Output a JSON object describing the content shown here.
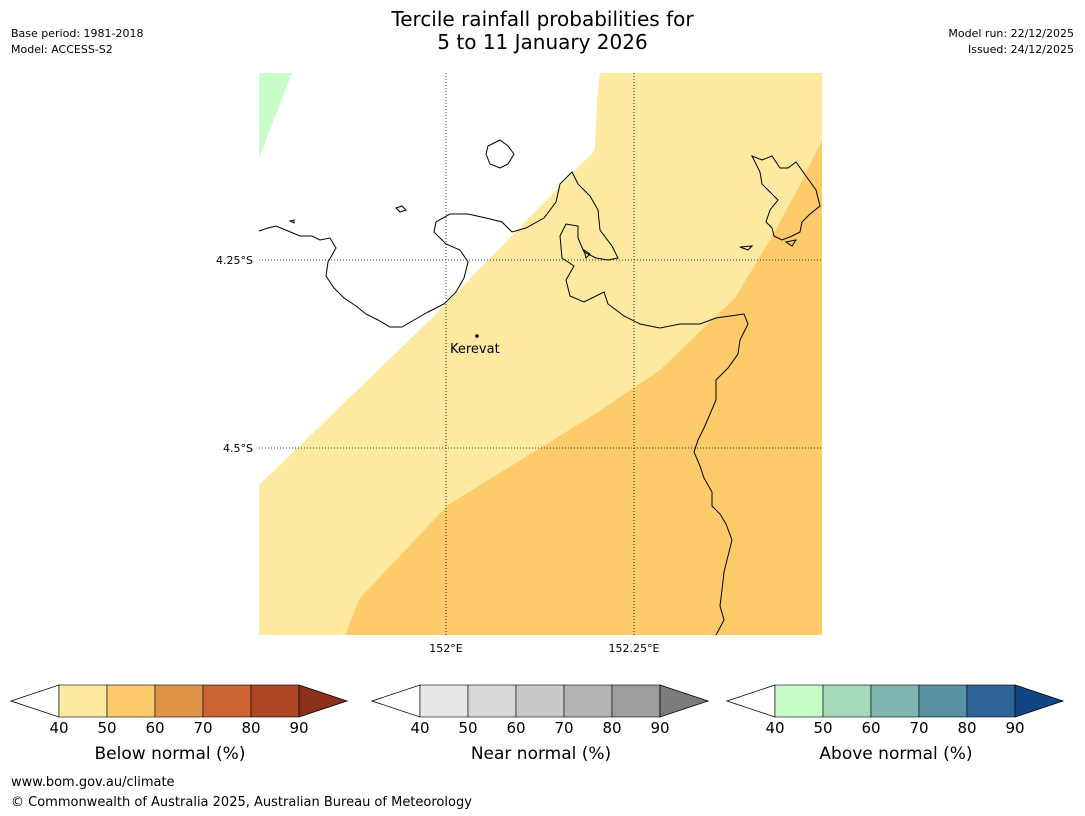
{
  "header": {
    "title_line1": "Tercile rainfall probabilities for",
    "title_line2": "5 to 11 January 2026",
    "base_period": "Base period: 1981-2018",
    "model": "Model: ACCESS-S2",
    "model_run": "Model run: 22/12/2025",
    "issued": "Issued: 24/12/2025"
  },
  "map": {
    "lat_labels": [
      "4.25°S",
      "4.5°S"
    ],
    "lon_labels": [
      "152°E",
      "152.25°E"
    ],
    "place_label": "Kerevat",
    "colors": {
      "below_50": "#fde9a0",
      "below_60": "#fdcb6a",
      "above_50": "#c8fdca"
    }
  },
  "legends": [
    {
      "label": "Below normal (%)",
      "ticks": [
        "40",
        "50",
        "60",
        "70",
        "80",
        "90"
      ],
      "colors": [
        "#fde9a0",
        "#fdcb6a",
        "#e09448",
        "#cc6433",
        "#ad4726"
      ],
      "extend_color": "#8c3019"
    },
    {
      "label": "Near normal (%)",
      "ticks": [
        "40",
        "50",
        "60",
        "70",
        "80",
        "90"
      ],
      "colors": [
        "#e7e7e7",
        "#d8d8d8",
        "#c8c8c8",
        "#b3b3b3",
        "#9d9d9d"
      ],
      "extend_color": "#7c7c7c"
    },
    {
      "label": "Above normal (%)",
      "ticks": [
        "40",
        "50",
        "60",
        "70",
        "80",
        "90"
      ],
      "colors": [
        "#c8fdca",
        "#a4d9bc",
        "#80b6b0",
        "#5891a0",
        "#2f6498"
      ],
      "extend_color": "#104684"
    }
  ],
  "footer": {
    "url": "www.bom.gov.au/climate",
    "copyright": "© Commonwealth of Australia 2025, Australian Bureau of Meteorology"
  }
}
